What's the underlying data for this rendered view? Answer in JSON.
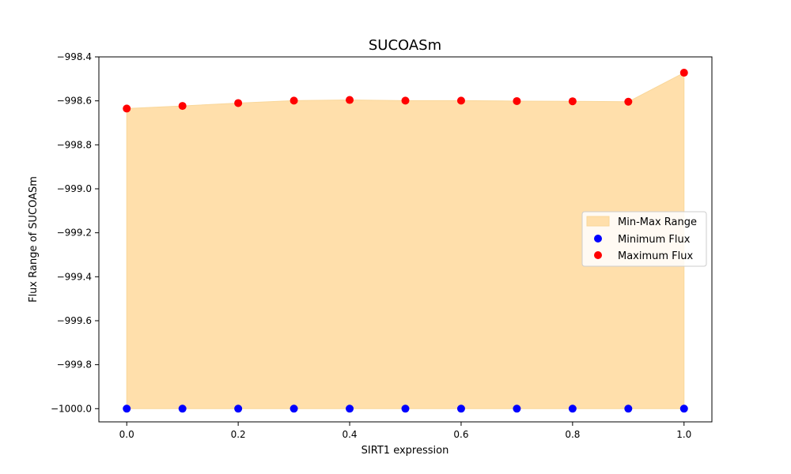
{
  "chart_data": {
    "type": "scatter",
    "title": "SUCOASm",
    "xlabel": "SIRT1 expression",
    "ylabel": "Flux Range of SUCOASm",
    "xlim": [
      -0.05,
      1.05
    ],
    "ylim": [
      -1000.06,
      -998.4
    ],
    "x_ticks": [
      0.0,
      0.2,
      0.4,
      0.6,
      0.8,
      1.0
    ],
    "x_tick_labels": [
      "0.0",
      "0.2",
      "0.4",
      "0.6",
      "0.8",
      "1.0"
    ],
    "y_ticks": [
      -998.4,
      -998.6,
      -998.8,
      -999.0,
      -999.2,
      -999.4,
      -999.6,
      -999.8,
      -1000.0
    ],
    "y_tick_labels": [
      "−998.4",
      "−998.6",
      "−998.8",
      "−999.0",
      "−999.2",
      "−999.4",
      "−999.6",
      "−999.8",
      "−1000.0"
    ],
    "x": [
      0.0,
      0.1,
      0.2,
      0.3,
      0.4,
      0.5,
      0.6,
      0.7,
      0.8,
      0.9,
      1.0
    ],
    "series": [
      {
        "name": "Min-Max Range",
        "kind": "fill",
        "color": "#ffdfab"
      },
      {
        "name": "Minimum Flux",
        "kind": "scatter",
        "color": "#0000ff",
        "values": [
          -1000.0,
          -1000.0,
          -1000.0,
          -1000.0,
          -1000.0,
          -1000.0,
          -1000.0,
          -1000.0,
          -1000.0,
          -1000.0,
          -1000.0
        ]
      },
      {
        "name": "Maximum Flux",
        "kind": "scatter",
        "color": "#ff0000",
        "values": [
          -998.635,
          -998.623,
          -998.61,
          -998.599,
          -998.596,
          -998.599,
          -998.599,
          -998.601,
          -998.602,
          -998.604,
          -998.472
        ]
      }
    ],
    "legend_position": "center-right",
    "grid": false
  }
}
